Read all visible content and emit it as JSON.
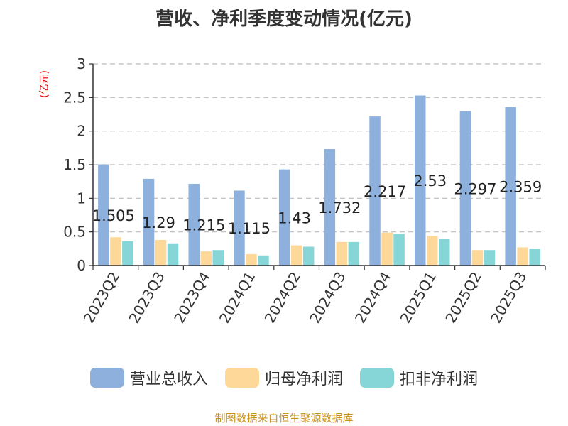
{
  "chart_data": {
    "type": "bar",
    "title": "营收、净利季度变动情况(亿元)",
    "y_unit_label": "(亿元)",
    "categories": [
      "2023Q2",
      "2023Q3",
      "2023Q4",
      "2024Q1",
      "2024Q2",
      "2024Q3",
      "2024Q4",
      "2025Q1",
      "2025Q2",
      "2025Q3"
    ],
    "series": [
      {
        "name": "营业总收入",
        "color": "#8eb0dd",
        "values": [
          1.505,
          1.29,
          1.215,
          1.115,
          1.43,
          1.732,
          2.217,
          2.53,
          2.297,
          2.359
        ]
      },
      {
        "name": "归母净利润",
        "color": "#fdd898",
        "values": [
          0.42,
          0.38,
          0.21,
          0.17,
          0.3,
          0.35,
          0.49,
          0.44,
          0.23,
          0.27
        ]
      },
      {
        "name": "扣非净利润",
        "color": "#86d5d7",
        "values": [
          0.36,
          0.33,
          0.23,
          0.15,
          0.28,
          0.35,
          0.47,
          0.4,
          0.23,
          0.25
        ]
      }
    ],
    "data_labels": [
      "1.505",
      "1.29",
      "1.215",
      "1.115",
      "1.43",
      "1.732",
      "2.217",
      "2.53",
      "2.297",
      "2.359"
    ],
    "ylim": [
      0,
      3
    ],
    "yticks": [
      {
        "value": 0,
        "label": "0"
      },
      {
        "value": 0.5,
        "label": "0.5"
      },
      {
        "value": 1,
        "label": "1"
      },
      {
        "value": 1.5,
        "label": "1.5"
      },
      {
        "value": 2,
        "label": "2"
      },
      {
        "value": 2.5,
        "label": "2.5"
      },
      {
        "value": 3,
        "label": "3"
      }
    ],
    "grid": true,
    "legend_position": "bottom"
  },
  "footer": {
    "source": "制图数据来自恒生聚源数据库"
  }
}
